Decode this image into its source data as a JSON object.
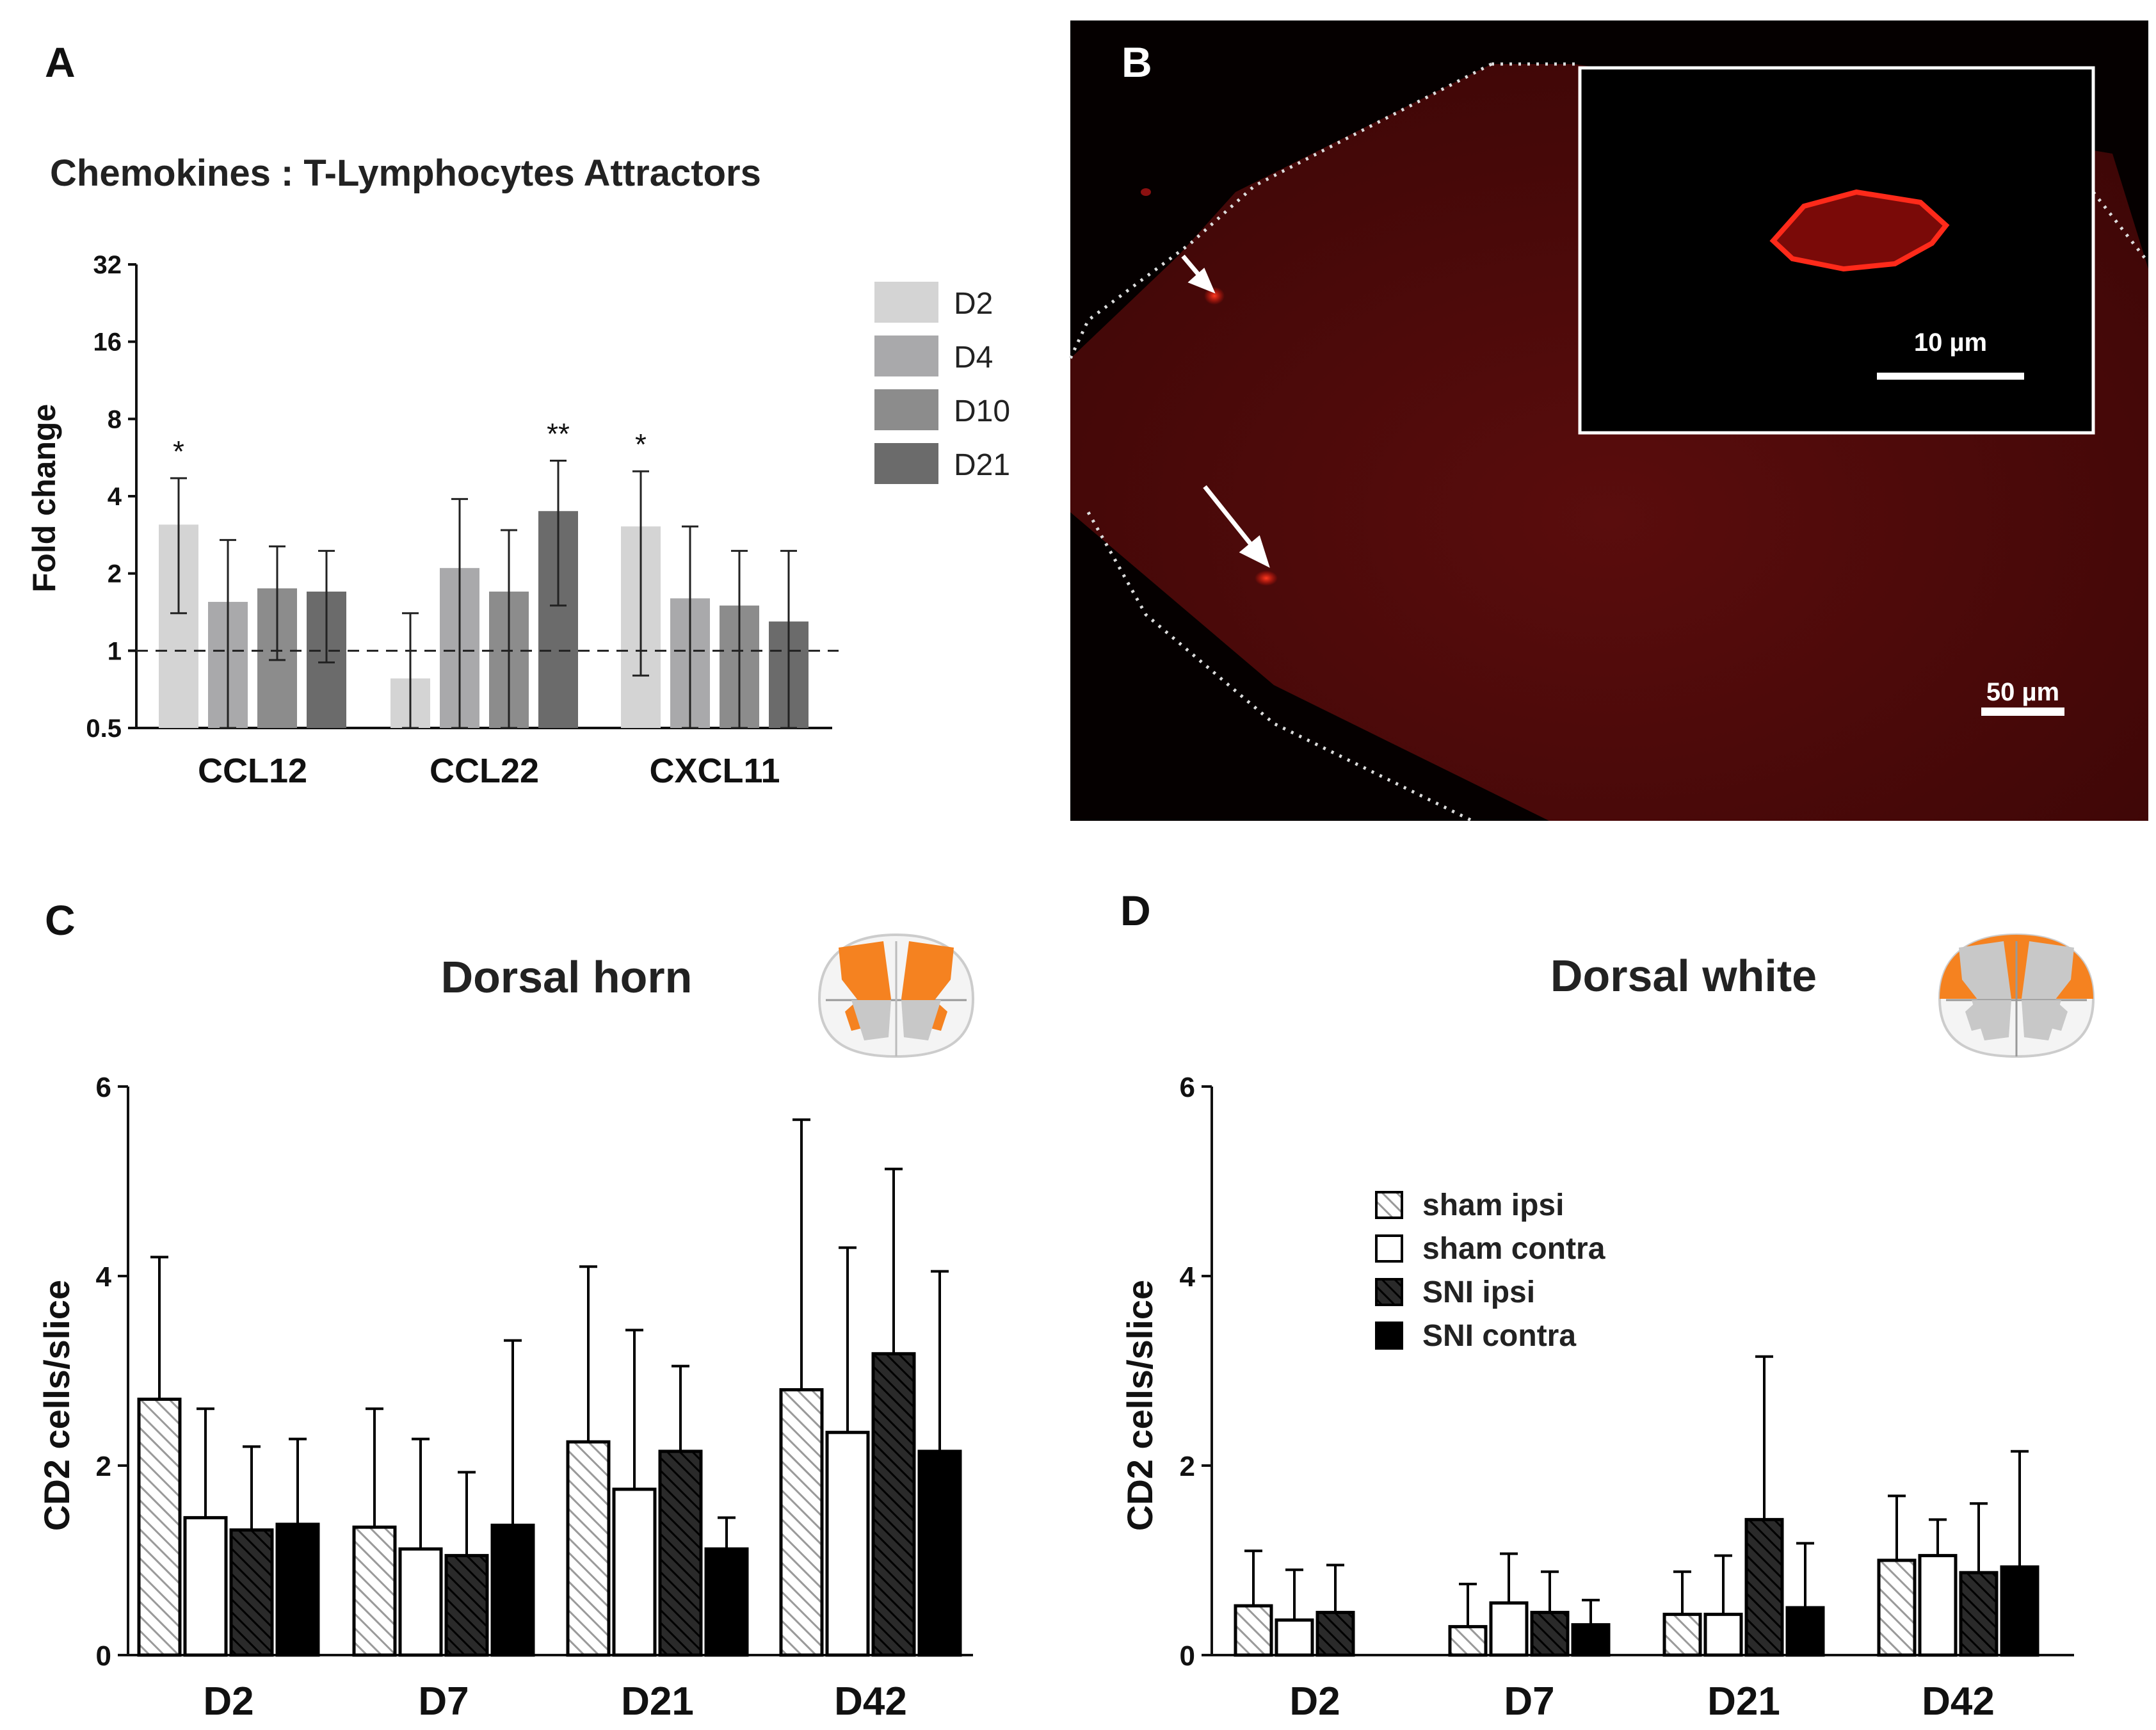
{
  "panels": {
    "A": {
      "letter": "A",
      "chart_data": {
        "type": "bar",
        "title": "Chemokines : T-Lymphocytes Attractors",
        "xlabel": "",
        "ylabel": "Fold change",
        "yscale": "log2",
        "ylim": [
          0.5,
          32
        ],
        "yticks": [
          0.5,
          1,
          2,
          4,
          8,
          16,
          32
        ],
        "ytick_labels": [
          "0.5",
          "1",
          "2",
          "4",
          "8",
          "16",
          "32"
        ],
        "reference_line": 1,
        "categories": [
          "CCL12",
          "CCL22",
          "CXCL11"
        ],
        "series": [
          {
            "name": "D2",
            "color": "#d4d4d4",
            "values": [
              3.1,
              0.78,
              3.05
            ],
            "err_low": [
              1.4,
              0.5,
              0.8
            ],
            "err_high": [
              4.7,
              1.4,
              5.0
            ]
          },
          {
            "name": "D4",
            "color": "#a9a9ab",
            "values": [
              1.55,
              2.1,
              1.6
            ],
            "err_low": [
              0.5,
              0.5,
              0.5
            ],
            "err_high": [
              2.7,
              3.9,
              3.05
            ]
          },
          {
            "name": "D10",
            "color": "#8c8c8c",
            "values": [
              1.75,
              1.7,
              1.5
            ],
            "err_low": [
              0.92,
              0.5,
              0.5
            ],
            "err_high": [
              2.55,
              2.95,
              2.45
            ]
          },
          {
            "name": "D21",
            "color": "#6b6b6b",
            "values": [
              1.7,
              3.5,
              1.3
            ],
            "err_low": [
              0.9,
              1.5,
              0.5
            ],
            "err_high": [
              2.45,
              5.5,
              2.45
            ]
          }
        ],
        "significance": [
          {
            "category": "CCL12",
            "series": "D2",
            "label": "*"
          },
          {
            "category": "CCL22",
            "series": "D21",
            "label": "**"
          },
          {
            "category": "CXCL11",
            "series": "D2",
            "label": "*"
          }
        ]
      }
    },
    "B": {
      "letter": "B",
      "image_description": "Fluorescence micrograph of dorsal spinal cord section with CD2-positive cells (red)",
      "inset_scale_label": "10 µm",
      "main_scale_label": "50 µm",
      "stain_color": "#ff2a1a"
    },
    "C": {
      "letter": "C",
      "chart_data": {
        "type": "bar",
        "title": "Dorsal horn",
        "xlabel": "",
        "ylabel": "CD2 cells/slice",
        "ylim": [
          0,
          6
        ],
        "yticks": [
          0,
          2,
          4,
          6
        ],
        "ytick_labels": [
          "0",
          "2",
          "4",
          "6"
        ],
        "categories": [
          "D2",
          "D7",
          "D21",
          "D42"
        ],
        "series": [
          {
            "name": "sham ipsi",
            "pattern": "light-hatch",
            "values": [
              2.7,
              1.35,
              2.25,
              2.8
            ],
            "err_high": [
              4.2,
              2.6,
              4.1,
              5.65
            ]
          },
          {
            "name": "sham contra",
            "pattern": "white",
            "values": [
              1.45,
              1.12,
              1.75,
              2.35
            ],
            "err_high": [
              2.6,
              2.28,
              3.43,
              4.3
            ]
          },
          {
            "name": "SNI ipsi",
            "pattern": "dark-hatch",
            "values": [
              1.32,
              1.05,
              2.15,
              3.18
            ],
            "err_high": [
              2.2,
              1.93,
              3.05,
              5.13
            ]
          },
          {
            "name": "SNI contra",
            "pattern": "black",
            "values": [
              1.38,
              1.37,
              1.12,
              2.15
            ],
            "err_high": [
              2.28,
              3.32,
              1.45,
              4.05
            ]
          }
        ]
      },
      "icon": "spinal-cord-dorsal-horn-icon"
    },
    "D": {
      "letter": "D",
      "chart_data": {
        "type": "bar",
        "title": "Dorsal white",
        "xlabel": "",
        "ylabel": "CD2 cells/slice",
        "ylim": [
          0,
          6
        ],
        "yticks": [
          0,
          2,
          4,
          6
        ],
        "ytick_labels": [
          "0",
          "2",
          "4",
          "6"
        ],
        "categories": [
          "D2",
          "D7",
          "D21",
          "D42"
        ],
        "series": [
          {
            "name": "sham ipsi",
            "pattern": "light-hatch",
            "values": [
              0.52,
              0.3,
              0.43,
              1.0
            ],
            "err_high": [
              1.1,
              0.75,
              0.88,
              1.68
            ]
          },
          {
            "name": "sham contra",
            "pattern": "white",
            "values": [
              0.37,
              0.55,
              0.43,
              1.05
            ],
            "err_high": [
              0.9,
              1.07,
              1.05,
              1.43
            ]
          },
          {
            "name": "SNI ipsi",
            "pattern": "dark-hatch",
            "values": [
              0.45,
              0.45,
              1.43,
              0.87
            ],
            "err_high": [
              0.95,
              0.88,
              3.15,
              1.6
            ]
          },
          {
            "name": "SNI contra",
            "pattern": "black",
            "values": [
              0,
              0.32,
              0.5,
              0.93
            ],
            "err_high": [
              0,
              0.58,
              1.18,
              2.15
            ]
          }
        ],
        "legend": [
          "sham ipsi",
          "sham contra",
          "SNI ipsi",
          "SNI contra"
        ]
      },
      "icon": "spinal-cord-dorsal-white-icon"
    }
  },
  "colors": {
    "hatch_light": "#9a9a9a",
    "hatch_dark": "#1a1a1a",
    "highlight_orange": "#f58220",
    "cord_gray": "#c8c8c8"
  }
}
